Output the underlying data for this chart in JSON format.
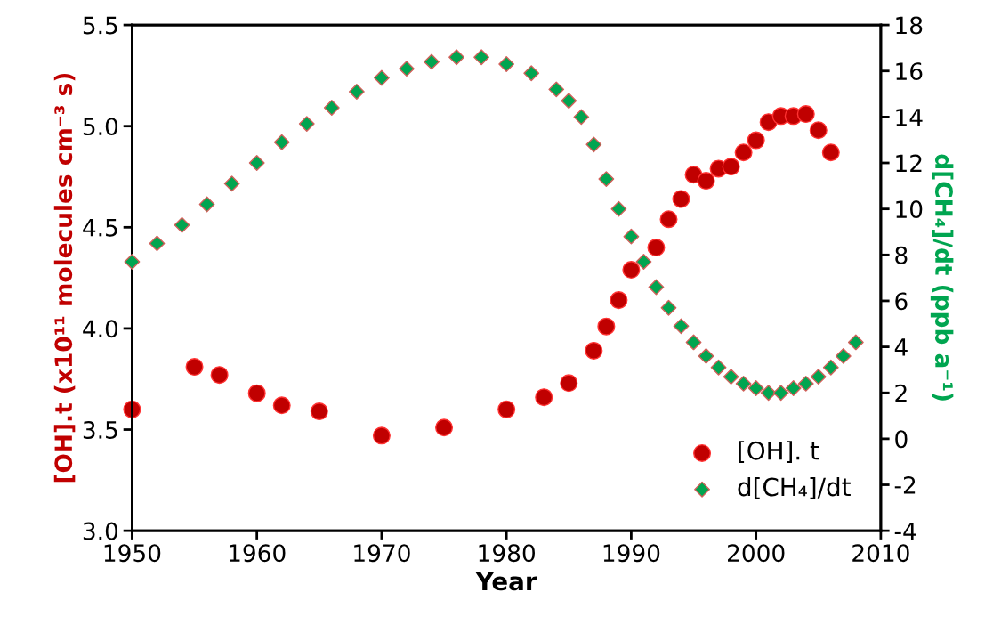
{
  "chart_data": {
    "type": "scatter",
    "xlabel": "Year",
    "ylabel": "[OH].t (x10¹¹ molecules cm⁻³ s)",
    "y2label": "d[CH₄]/dt (ppb a⁻¹)",
    "xlim": [
      1950,
      2010
    ],
    "xticks": [
      1950,
      1960,
      1970,
      1980,
      1990,
      2000,
      2010
    ],
    "ylim": [
      3.0,
      5.5
    ],
    "yticks": [
      {
        "value": 3.0,
        "label": "3.0"
      },
      {
        "value": 3.5,
        "label": "3.5"
      },
      {
        "value": 4.0,
        "label": "4.0"
      },
      {
        "value": 4.5,
        "label": "4.5"
      },
      {
        "value": 5.0,
        "label": "5.0"
      },
      {
        "value": 5.5,
        "label": "5.5"
      }
    ],
    "y2lim": [
      -4,
      18
    ],
    "y2ticks": [
      -4,
      -2,
      0,
      2,
      4,
      6,
      8,
      10,
      12,
      14,
      16,
      18
    ],
    "grid": false,
    "legend": "bottom right",
    "series": [
      {
        "name": "[OH]. t",
        "color": "#c00000",
        "marker": "circle",
        "x": [
          1950,
          1955,
          1957,
          1960,
          1962,
          1965,
          1970,
          1975,
          1980,
          1983,
          1985,
          1987,
          1988,
          1989,
          1990,
          1992,
          1993,
          1994,
          1995,
          1996,
          1997,
          1998,
          1999,
          2000,
          2001,
          2002,
          2003,
          2004,
          2005,
          2006
        ],
        "values": [
          3.6,
          3.81,
          3.77,
          3.68,
          3.62,
          3.59,
          3.47,
          3.51,
          3.6,
          3.66,
          3.73,
          3.89,
          4.01,
          4.14,
          4.29,
          4.4,
          4.54,
          4.64,
          4.76,
          4.73,
          4.79,
          4.8,
          4.87,
          4.93,
          5.02,
          5.05,
          5.05,
          5.06,
          4.98,
          4.87
        ]
      },
      {
        "name": "d[CH₄]/dt",
        "color": "#00a550",
        "marker": "diamond",
        "axis": "y2",
        "x": [
          1950,
          1952,
          1954,
          1956,
          1958,
          1960,
          1962,
          1964,
          1966,
          1968,
          1970,
          1972,
          1974,
          1976,
          1978,
          1980,
          1982,
          1984,
          1985,
          1986,
          1987,
          1988,
          1989,
          1990,
          1991,
          1992,
          1993,
          1994,
          1995,
          1996,
          1997,
          1998,
          1999,
          2000,
          2001,
          2002,
          2003,
          2004,
          2005,
          2006,
          2007,
          2008
        ],
        "values": [
          7.7,
          8.5,
          9.3,
          10.2,
          11.1,
          12.0,
          12.9,
          13.7,
          14.4,
          15.1,
          15.7,
          16.1,
          16.4,
          16.6,
          16.6,
          16.3,
          15.9,
          15.2,
          14.7,
          14.0,
          12.8,
          11.3,
          10.0,
          8.8,
          7.7,
          6.6,
          5.7,
          4.9,
          4.2,
          3.6,
          3.1,
          2.7,
          2.4,
          2.2,
          2.0,
          2.0,
          2.2,
          2.4,
          2.7,
          3.1,
          3.6,
          4.2
        ]
      }
    ]
  }
}
